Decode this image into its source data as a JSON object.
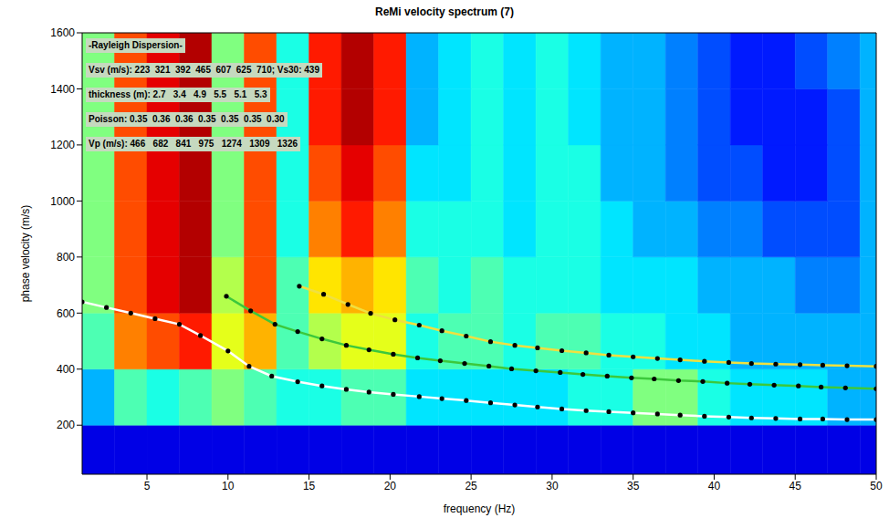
{
  "chart_data": {
    "type": "line",
    "title": "ReMi velocity spectrum (7)",
    "xlabel": "frequency (Hz)",
    "ylabel": "phase velocity (m/s)",
    "xlim": [
      1,
      50
    ],
    "xticks": [
      5,
      10,
      15,
      20,
      25,
      30,
      35,
      40,
      45,
      50
    ],
    "ylim": [
      25,
      1600
    ],
    "yticks": [
      200,
      400,
      600,
      800,
      1000,
      1200,
      1400,
      1600
    ],
    "grid": false,
    "annotations": [
      "-Rayleigh Dispersion-",
      "Vsv (m/s): 223  321  392  465  607  625  710; Vs30: 439",
      "thickness (m): 2.7   3.4   4.9   5.5   5.1   5.3",
      "Poisson: 0.35  0.36  0.36  0.35  0.35  0.35  0.30",
      "Vp (m/s): 466   682   841   975   1274   1309   1326"
    ],
    "spectrum": {
      "x_edges": [
        1,
        3,
        5,
        7,
        9,
        11,
        13,
        15,
        17,
        19,
        21,
        23,
        25,
        27,
        29,
        31,
        33,
        35,
        37,
        39,
        41,
        43,
        45,
        47,
        49,
        50
      ],
      "y_edges": [
        25,
        200,
        400,
        600,
        800,
        1000,
        1200,
        1400,
        1600
      ],
      "zlim": [
        0,
        1
      ],
      "cells": [
        [
          0.1,
          0.1,
          0.1,
          0.1,
          0.1,
          0.1,
          0.1,
          0.1,
          0.1,
          0.1,
          0.1,
          0.1,
          0.1,
          0.1,
          0.1,
          0.1,
          0.1,
          0.1,
          0.1,
          0.1,
          0.1,
          0.1,
          0.1,
          0.1,
          0.1
        ],
        [
          0.3,
          0.45,
          0.4,
          0.45,
          0.5,
          0.45,
          0.4,
          0.4,
          0.45,
          0.45,
          0.35,
          0.35,
          0.35,
          0.35,
          0.35,
          0.4,
          0.4,
          0.5,
          0.5,
          0.4,
          0.35,
          0.35,
          0.35,
          0.3,
          0.3
        ],
        [
          0.45,
          0.75,
          0.8,
          0.85,
          0.6,
          0.7,
          0.45,
          0.55,
          0.6,
          0.6,
          0.4,
          0.45,
          0.45,
          0.4,
          0.45,
          0.45,
          0.4,
          0.4,
          0.35,
          0.35,
          0.3,
          0.3,
          0.3,
          0.3,
          0.3
        ],
        [
          0.5,
          0.8,
          0.9,
          0.95,
          0.55,
          0.8,
          0.45,
          0.65,
          0.7,
          0.65,
          0.45,
          0.4,
          0.45,
          0.4,
          0.4,
          0.4,
          0.35,
          0.35,
          0.35,
          0.3,
          0.3,
          0.3,
          0.25,
          0.25,
          0.3
        ],
        [
          0.5,
          0.8,
          0.9,
          0.95,
          0.5,
          0.8,
          0.4,
          0.75,
          0.85,
          0.75,
          0.4,
          0.4,
          0.4,
          0.35,
          0.4,
          0.4,
          0.35,
          0.3,
          0.3,
          0.25,
          0.25,
          0.2,
          0.2,
          0.2,
          0.3
        ],
        [
          0.5,
          0.8,
          0.9,
          0.95,
          0.5,
          0.8,
          0.4,
          0.8,
          0.9,
          0.8,
          0.35,
          0.35,
          0.4,
          0.35,
          0.4,
          0.4,
          0.3,
          0.3,
          0.25,
          0.2,
          0.2,
          0.15,
          0.15,
          0.2,
          0.3
        ],
        [
          0.5,
          0.8,
          0.9,
          0.95,
          0.5,
          0.8,
          0.4,
          0.85,
          0.95,
          0.85,
          0.3,
          0.35,
          0.4,
          0.35,
          0.4,
          0.35,
          0.3,
          0.3,
          0.25,
          0.2,
          0.15,
          0.15,
          0.15,
          0.2,
          0.3
        ],
        [
          0.5,
          0.8,
          0.9,
          0.95,
          0.5,
          0.8,
          0.4,
          0.85,
          0.95,
          0.85,
          0.3,
          0.35,
          0.4,
          0.35,
          0.4,
          0.35,
          0.3,
          0.3,
          0.25,
          0.2,
          0.15,
          0.15,
          0.2,
          0.25,
          0.3
        ]
      ]
    },
    "series": [
      {
        "color": "#ffffff",
        "marker": "circle",
        "line_style": "solid",
        "x": [
          1,
          2.5,
          4,
          5.5,
          7,
          8.3,
          10,
          11.3,
          12.7,
          14.3,
          15.8,
          17.3,
          18.7,
          20.2,
          21.8,
          23.2,
          24.7,
          26.2,
          27.7,
          29.1,
          30.6,
          32.1,
          33.5,
          35,
          36.5,
          37.9,
          39.4,
          40.9,
          42.3,
          43.8,
          45.3,
          46.7,
          48.2,
          50
        ],
        "values": [
          640,
          620,
          600,
          580,
          560,
          520,
          465,
          410,
          375,
          355,
          340,
          328,
          318,
          310,
          302,
          295,
          288,
          280,
          272,
          265,
          258,
          252,
          248,
          244,
          240,
          236,
          232,
          229,
          226,
          224,
          222,
          222,
          220,
          220
        ]
      },
      {
        "color": "#3cc83c",
        "marker": "circle",
        "line_style": "solid",
        "x": [
          9.9,
          11.4,
          12.9,
          14.3,
          15.8,
          17.3,
          18.7,
          20.2,
          21.7,
          23.1,
          24.6,
          26.1,
          27.5,
          29,
          30.5,
          31.9,
          33.4,
          34.9,
          36.3,
          37.8,
          39.3,
          40.8,
          42.2,
          43.7,
          45.2,
          46.6,
          48.1,
          50
        ],
        "values": [
          660,
          608,
          560,
          534,
          508,
          485,
          469,
          453,
          440,
          430,
          420,
          411,
          401,
          394,
          388,
          381,
          375,
          369,
          365,
          359,
          356,
          350,
          346,
          343,
          340,
          336,
          333,
          330
        ]
      },
      {
        "color": "#f0e040",
        "marker": "circle",
        "line_style": "solid",
        "x": [
          14.4,
          15.9,
          17.4,
          18.8,
          20.3,
          21.8,
          23.2,
          24.7,
          26.2,
          27.7,
          29.1,
          30.6,
          32.1,
          33.5,
          35,
          36.5,
          37.9,
          39.4,
          40.9,
          42.3,
          43.8,
          45.3,
          46.7,
          48.2,
          50
        ],
        "values": [
          696,
          667,
          631,
          599,
          576,
          557,
          537,
          518,
          498,
          485,
          476,
          466,
          458,
          450,
          444,
          438,
          433,
          428,
          424,
          420,
          418,
          416,
          414,
          412,
          410
        ]
      }
    ]
  }
}
